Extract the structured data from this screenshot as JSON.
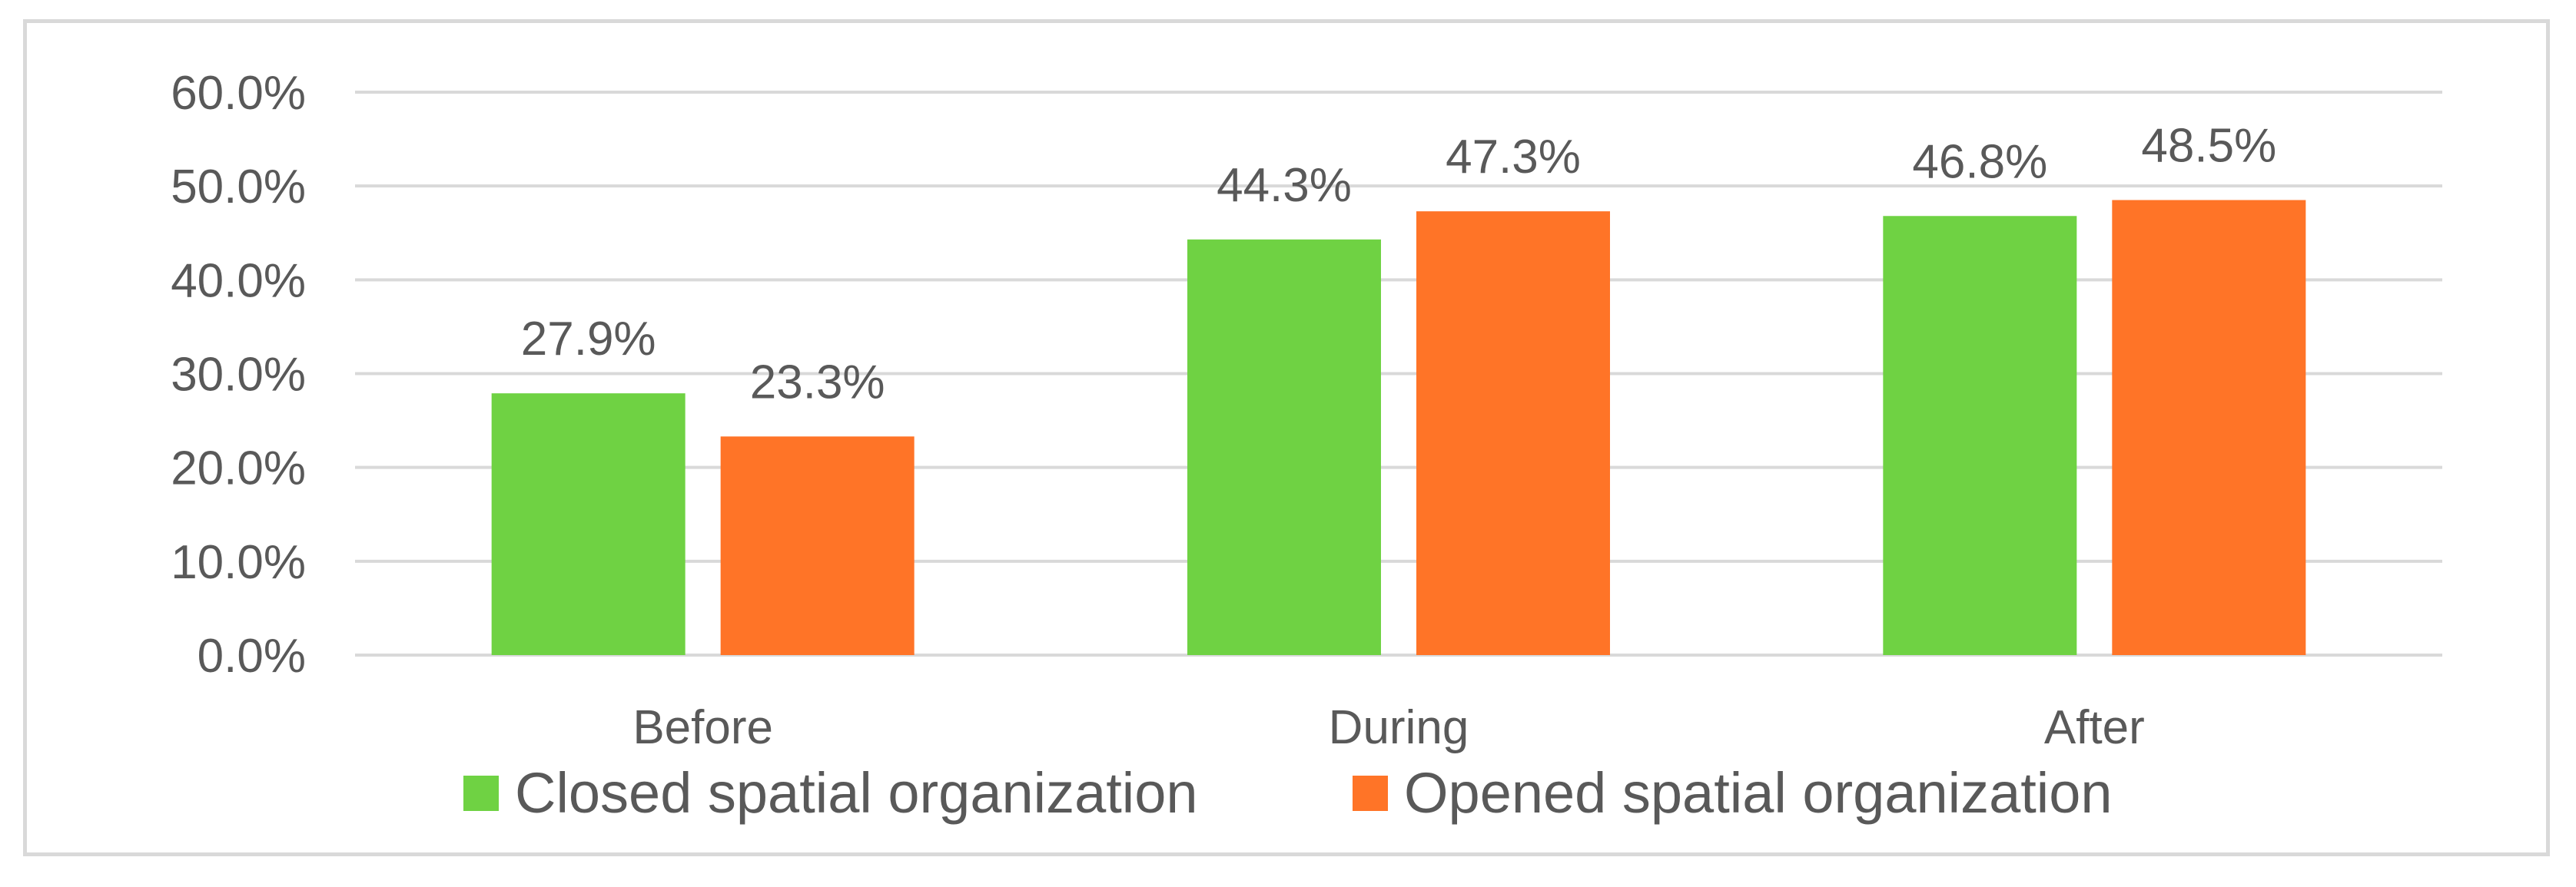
{
  "chart_data": {
    "type": "bar",
    "title": "",
    "xlabel": "",
    "ylabel": "",
    "categories": [
      "Before",
      "During",
      "After"
    ],
    "series": [
      {
        "name": "Closed spatial organization",
        "color": "#6fd243",
        "values": [
          27.9,
          44.3,
          46.8
        ],
        "labels": [
          "27.9%",
          "44.3%",
          "46.8%"
        ]
      },
      {
        "name": "Opened spatial organization",
        "color": "#ff7427",
        "values": [
          23.3,
          47.3,
          48.5
        ],
        "labels": [
          "23.3%",
          "47.3%",
          "48.5%"
        ]
      }
    ],
    "ylim": [
      0,
      60
    ],
    "yticks": [
      0,
      10,
      20,
      30,
      40,
      50,
      60
    ],
    "ytick_labels": [
      "0.0%",
      "10.0%",
      "20.0%",
      "30.0%",
      "40.0%",
      "50.0%",
      "60.0%"
    ],
    "grid": true,
    "gridline_color": "#d9d9d9",
    "legend_position": "bottom"
  }
}
